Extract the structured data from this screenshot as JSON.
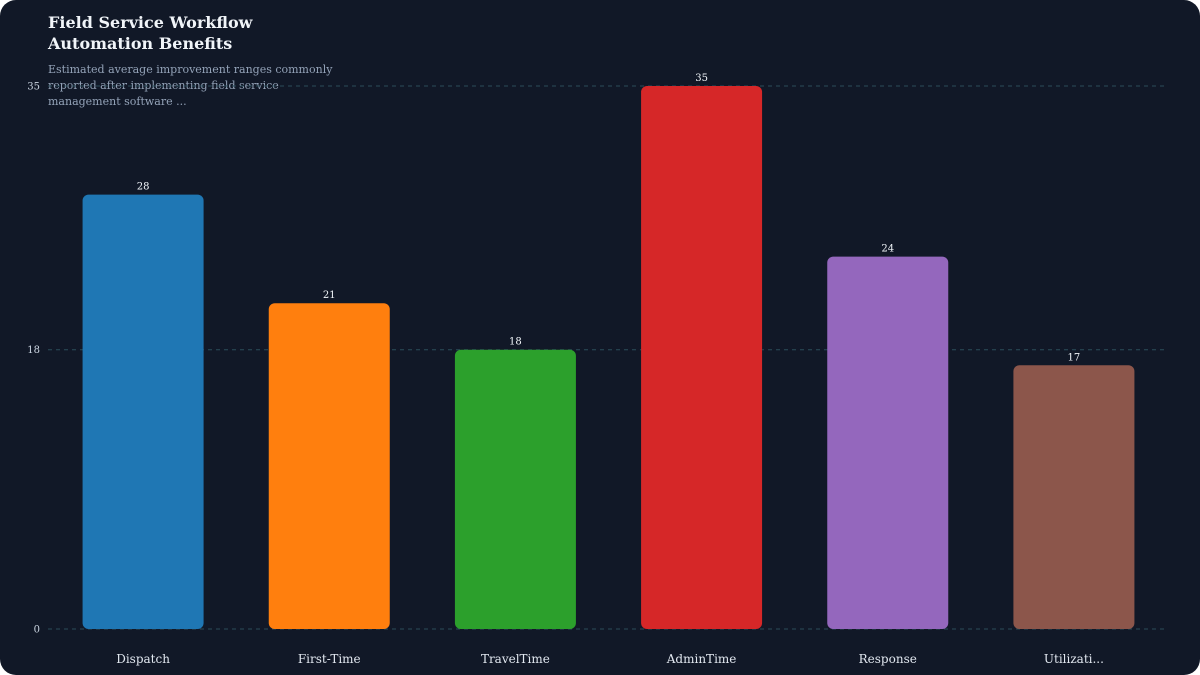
{
  "chart_data": {
    "type": "bar",
    "title": "Field Service Workflow Automation Benefits",
    "subtitle": "Estimated average improvement ranges commonly reported after implementing field service management software ...",
    "categories": [
      "Dispatch",
      "First-Time",
      "TravelTime",
      "AdminTime",
      "Response",
      "Utilizati..."
    ],
    "values": [
      28,
      21,
      18,
      35,
      24,
      17
    ],
    "colors": [
      "#1f77b4",
      "#ff7f0e",
      "#2ca02c",
      "#d62728",
      "#9467bd",
      "#8c564b"
    ],
    "yticks": [
      0,
      18,
      35
    ],
    "ylim": [
      0,
      35
    ],
    "grid": true,
    "legend": "none"
  }
}
